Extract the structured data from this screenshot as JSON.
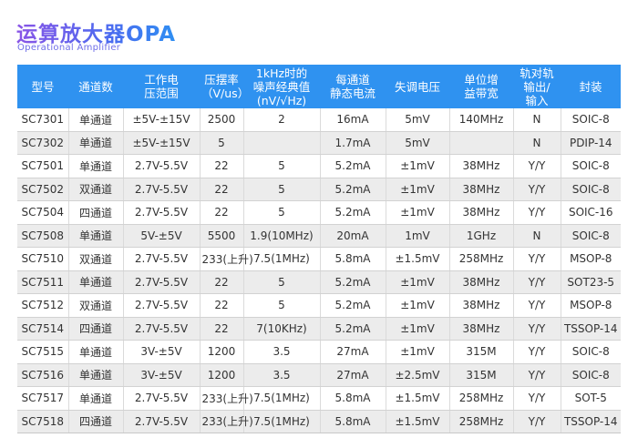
{
  "header": {
    "title": "运算放大器OPA",
    "subtitle": "Operational Amplifier"
  },
  "table": {
    "columns": [
      "型号",
      "通道数",
      "工作电\n压范围",
      "压摆率\n（V/us）",
      "1kHz时的\n噪声经典值\n(nV/√Hz)",
      "每通道\n静态电流",
      "失调电压",
      "单位增\n益带宽",
      "轨对轨\n输出/\n输入",
      "封装"
    ],
    "rows": [
      [
        "SC7301",
        "单通道",
        "±5V-±15V",
        "2500",
        "2",
        "16mA",
        "5mV",
        "140MHz",
        "N",
        "SOIC-8"
      ],
      [
        "SC7302",
        "单通道",
        "±5V-±15V",
        "5",
        "",
        "1.7mA",
        "5mV",
        "",
        "N",
        "PDIP-14"
      ],
      [
        "SC7501",
        "单通道",
        "2.7V-5.5V",
        "22",
        "5",
        "5.2mA",
        "±1mV",
        "38MHz",
        "Y/Y",
        "SOIC-8"
      ],
      [
        "SC7502",
        "双通道",
        "2.7V-5.5V",
        "22",
        "5",
        "5.2mA",
        "±1mV",
        "38MHz",
        "Y/Y",
        "SOIC-8"
      ],
      [
        "SC7504",
        "四通道",
        "2.7V-5.5V",
        "22",
        "5",
        "5.2mA",
        "±1mV",
        "38MHz",
        "Y/Y",
        "SOIC-16"
      ],
      [
        "SC7508",
        "单通道",
        "5V-±5V",
        "5500",
        "1.9(10MHz)",
        "20mA",
        "1mV",
        "1GHz",
        "N",
        "SOIC-8"
      ],
      [
        "SC7510",
        "双通道",
        "2.7V-5.5V",
        "233(上升)",
        "7.5(1MHz)",
        "5.8mA",
        "±1.5mV",
        "258MHz",
        "Y/Y",
        "MSOP-8"
      ],
      [
        "SC7511",
        "单通道",
        "2.7V-5.5V",
        "22",
        "5",
        "5.2mA",
        "±1mV",
        "38MHz",
        "Y/Y",
        "SOT23-5"
      ],
      [
        "SC7512",
        "双通道",
        "2.7V-5.5V",
        "22",
        "5",
        "5.2mA",
        "±1mV",
        "38MHz",
        "Y/Y",
        "MSOP-8"
      ],
      [
        "SC7514",
        "四通道",
        "2.7V-5.5V",
        "22",
        "7(10KHz)",
        "5.2mA",
        "±1mV",
        "38MHz",
        "Y/Y",
        "TSSOP-14"
      ],
      [
        "SC7515",
        "单通道",
        "3V-±5V",
        "1200",
        "3.5",
        "27mA",
        "±1mV",
        "315M",
        "Y/Y",
        "SOIC-8"
      ],
      [
        "SC7516",
        "单通道",
        "3V-±5V",
        "1200",
        "3.5",
        "27mA",
        "±2.5mV",
        "315M",
        "Y/Y",
        "SOIC-8"
      ],
      [
        "SC7517",
        "单通道",
        "2.7V-5.5V",
        "233(上升)",
        "7.5(1MHz)",
        "5.8mA",
        "±1.5mV",
        "258MHz",
        "Y/Y",
        "SOT-5"
      ],
      [
        "SC7518",
        "四通道",
        "2.7V-5.5V",
        "233(上升)",
        "7.5(1MHz)",
        "5.8mA",
        "±1.5mV",
        "258MHz",
        "Y/Y",
        "TSSOP-14"
      ]
    ]
  }
}
